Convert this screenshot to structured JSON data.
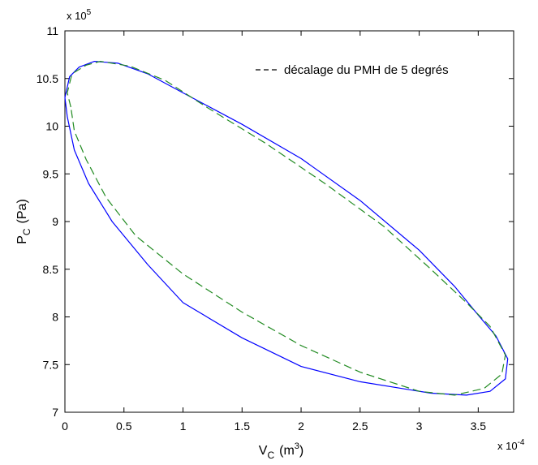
{
  "chart_data": {
    "type": "line",
    "xlabel": {
      "main": "V",
      "sub": "C",
      "unit_prefix": "(m",
      "unit_sup": "3",
      "unit_suffix": ")"
    },
    "ylabel": {
      "main": "P",
      "sub": "C",
      "unit": "(Pa)"
    },
    "xlim": [
      0,
      3.8
    ],
    "ylim": [
      7,
      11
    ],
    "x_exponent": {
      "base": "x 10",
      "power": "-4"
    },
    "y_exponent": {
      "base": "x 10",
      "power": "5"
    },
    "x_ticks": [
      0,
      0.5,
      1,
      1.5,
      2,
      2.5,
      3,
      3.5
    ],
    "x_tick_labels": [
      "0",
      "0.5",
      "1",
      "1.5",
      "2",
      "2.5",
      "3",
      "3.5"
    ],
    "y_ticks": [
      7,
      7.5,
      8,
      8.5,
      9,
      9.5,
      10,
      10.5,
      11
    ],
    "y_tick_labels": [
      "7",
      "7.5",
      "8",
      "8.5",
      "9",
      "9.5",
      "10",
      "10.5",
      "11"
    ],
    "grid": false,
    "legend": {
      "placement": "top-right",
      "entries": [
        {
          "label": "décalage du PMH de 5 degrés",
          "style": "dashed",
          "color": "#228B22"
        }
      ]
    },
    "series": [
      {
        "color": "#0000ff",
        "style": "solid",
        "points": [
          [
            0.02,
            10.1
          ],
          [
            0.0,
            10.3
          ],
          [
            0.04,
            10.52
          ],
          [
            0.12,
            10.62
          ],
          [
            0.25,
            10.68
          ],
          [
            0.45,
            10.66
          ],
          [
            0.7,
            10.55
          ],
          [
            1.0,
            10.35
          ],
          [
            1.5,
            10.02
          ],
          [
            2.0,
            9.66
          ],
          [
            2.5,
            9.22
          ],
          [
            3.0,
            8.7
          ],
          [
            3.3,
            8.32
          ],
          [
            3.5,
            8.02
          ],
          [
            3.65,
            7.8
          ],
          [
            3.75,
            7.56
          ],
          [
            3.73,
            7.35
          ],
          [
            3.6,
            7.22
          ],
          [
            3.4,
            7.18
          ],
          [
            3.1,
            7.2
          ],
          [
            2.5,
            7.32
          ],
          [
            2.0,
            7.48
          ],
          [
            1.5,
            7.78
          ],
          [
            1.0,
            8.15
          ],
          [
            0.7,
            8.55
          ],
          [
            0.4,
            9.0
          ],
          [
            0.2,
            9.4
          ],
          [
            0.08,
            9.75
          ],
          [
            0.02,
            10.1
          ]
        ]
      },
      {
        "color": "#228B22",
        "style": "dashed",
        "points": [
          [
            0.05,
            10.2
          ],
          [
            0.02,
            10.35
          ],
          [
            0.06,
            10.55
          ],
          [
            0.18,
            10.64
          ],
          [
            0.3,
            10.68
          ],
          [
            0.55,
            10.63
          ],
          [
            0.85,
            10.48
          ],
          [
            1.2,
            10.2
          ],
          [
            1.7,
            9.82
          ],
          [
            2.2,
            9.4
          ],
          [
            2.7,
            8.95
          ],
          [
            3.1,
            8.5
          ],
          [
            3.4,
            8.15
          ],
          [
            3.6,
            7.9
          ],
          [
            3.73,
            7.6
          ],
          [
            3.7,
            7.4
          ],
          [
            3.55,
            7.25
          ],
          [
            3.3,
            7.18
          ],
          [
            3.0,
            7.22
          ],
          [
            2.5,
            7.42
          ],
          [
            2.0,
            7.7
          ],
          [
            1.5,
            8.05
          ],
          [
            1.0,
            8.45
          ],
          [
            0.6,
            8.85
          ],
          [
            0.35,
            9.25
          ],
          [
            0.18,
            9.65
          ],
          [
            0.08,
            9.95
          ],
          [
            0.05,
            10.2
          ]
        ]
      }
    ]
  }
}
